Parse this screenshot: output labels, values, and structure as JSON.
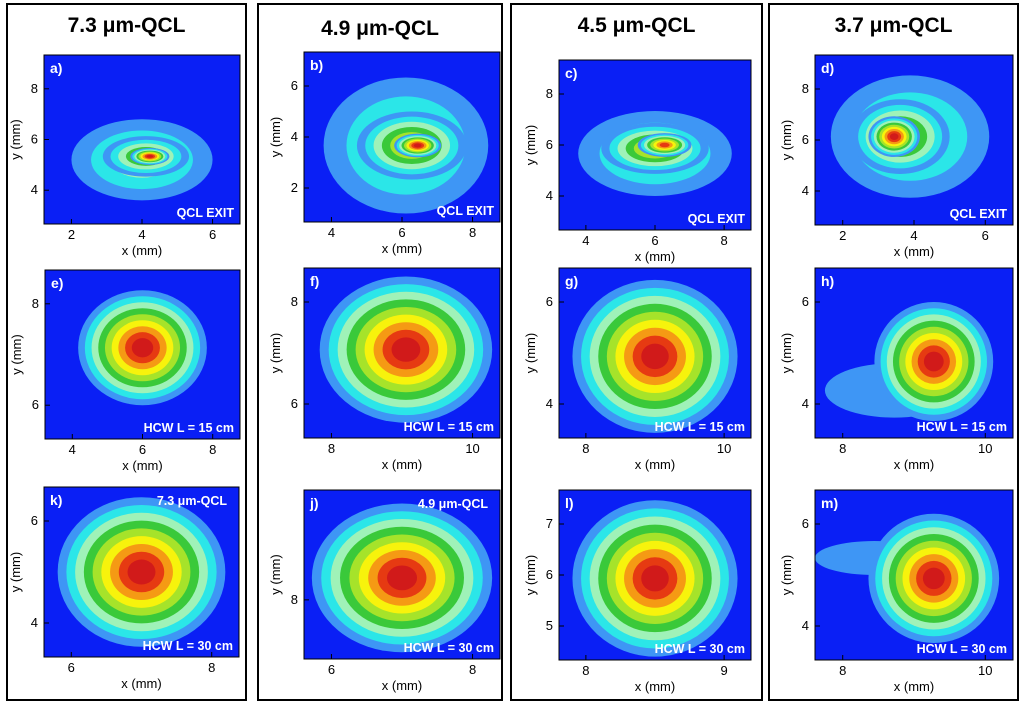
{
  "palette": [
    "#0a1ff5",
    "#3e96f5",
    "#2be6e8",
    "#9ff2b8",
    "#3ac93a",
    "#a6e32a",
    "#f7f30c",
    "#f59a14",
    "#e63a12",
    "#d11a1a"
  ],
  "axis_label_x": "x (mm)",
  "axis_label_y": "y (mm)",
  "columns": [
    {
      "title": "7.3 μm-QCL"
    },
    {
      "title": "4.9 μm-QCL"
    },
    {
      "title": "4.5 μm-QCL"
    },
    {
      "title": "3.7 μm-QCL"
    }
  ],
  "panels": [
    {
      "label": "a)",
      "annotation": "QCL EXIT",
      "xticks": [
        "2",
        "4",
        "6"
      ],
      "yticks": [
        "8",
        "6",
        "4"
      ],
      "blobs": [
        {
          "cx": 0.5,
          "cy": 0.62,
          "rx": 0.36,
          "ry": 0.24,
          "levels": 3
        },
        {
          "cx": 0.52,
          "cy": 0.6,
          "rx": 0.22,
          "ry": 0.12,
          "levels": 5
        },
        {
          "cx": 0.54,
          "cy": 0.6,
          "rx": 0.1,
          "ry": 0.05,
          "levels": 9
        }
      ]
    },
    {
      "label": "b)",
      "annotation": "QCL EXIT",
      "xticks": [
        "4",
        "6",
        "8"
      ],
      "yticks": [
        "6",
        "4",
        "2"
      ],
      "blobs": [
        {
          "cx": 0.52,
          "cy": 0.55,
          "rx": 0.42,
          "ry": 0.4,
          "levels": 3
        },
        {
          "cx": 0.55,
          "cy": 0.55,
          "rx": 0.28,
          "ry": 0.2,
          "levels": 6
        },
        {
          "cx": 0.58,
          "cy": 0.55,
          "rx": 0.12,
          "ry": 0.07,
          "levels": 9
        }
      ]
    },
    {
      "label": "c)",
      "annotation": "QCL EXIT",
      "xticks": [
        "4",
        "6",
        "8"
      ],
      "yticks": [
        "8",
        "6",
        "4"
      ],
      "blobs": [
        {
          "cx": 0.5,
          "cy": 0.55,
          "rx": 0.4,
          "ry": 0.25,
          "levels": 3
        },
        {
          "cx": 0.5,
          "cy": 0.52,
          "rx": 0.28,
          "ry": 0.15,
          "levels": 6
        },
        {
          "cx": 0.55,
          "cy": 0.5,
          "rx": 0.14,
          "ry": 0.07,
          "levels": 8
        }
      ]
    },
    {
      "label": "d)",
      "annotation": "QCL EXIT",
      "xticks": [
        "2",
        "4",
        "6"
      ],
      "yticks": [
        "8",
        "6",
        "4"
      ],
      "blobs": [
        {
          "cx": 0.48,
          "cy": 0.48,
          "rx": 0.4,
          "ry": 0.36,
          "levels": 3
        },
        {
          "cx": 0.43,
          "cy": 0.48,
          "rx": 0.25,
          "ry": 0.22,
          "levels": 6
        },
        {
          "cx": 0.4,
          "cy": 0.48,
          "rx": 0.13,
          "ry": 0.12,
          "levels": 9
        }
      ]
    },
    {
      "label": "e)",
      "annotation": "HCW L = 15 cm",
      "xticks": [
        "4",
        "6",
        "8"
      ],
      "yticks": [
        "8",
        "6"
      ],
      "blobs": [
        {
          "cx": 0.5,
          "cy": 0.46,
          "rx": 0.33,
          "ry": 0.34,
          "levels": 9
        }
      ]
    },
    {
      "label": "f)",
      "annotation": "HCW L = 15 cm",
      "xticks": [
        "8",
        "10"
      ],
      "yticks": [
        "8",
        "6"
      ],
      "blobs": [
        {
          "cx": 0.52,
          "cy": 0.48,
          "rx": 0.44,
          "ry": 0.43,
          "levels": 9
        }
      ]
    },
    {
      "label": "g)",
      "annotation": "HCW L = 15 cm",
      "xticks": [
        "8",
        "10"
      ],
      "yticks": [
        "6",
        "4"
      ],
      "blobs": [
        {
          "cx": 0.5,
          "cy": 0.52,
          "rx": 0.43,
          "ry": 0.45,
          "levels": 9
        }
      ]
    },
    {
      "label": "h)",
      "annotation": "HCW L = 15 cm",
      "xticks": [
        "8",
        "10"
      ],
      "yticks": [
        "6",
        "4"
      ],
      "blobs": [
        {
          "cx": 0.4,
          "cy": 0.72,
          "rx": 0.35,
          "ry": 0.16,
          "levels": 1
        },
        {
          "cx": 0.6,
          "cy": 0.55,
          "rx": 0.3,
          "ry": 0.35,
          "levels": 9
        }
      ]
    },
    {
      "label": "k)",
      "annotation": "HCW L = 30 cm",
      "inset": "7.3 μm-QCL",
      "xticks": [
        "6",
        "8"
      ],
      "yticks": [
        "6",
        "4"
      ],
      "blobs": [
        {
          "cx": 0.5,
          "cy": 0.5,
          "rx": 0.43,
          "ry": 0.44,
          "levels": 9
        }
      ]
    },
    {
      "label": "j)",
      "annotation": "HCW L = 30 cm",
      "inset": "4.9 μm-QCL",
      "xticks": [
        "6",
        "8"
      ],
      "yticks": [
        "8"
      ],
      "blobs": [
        {
          "cx": 0.5,
          "cy": 0.52,
          "rx": 0.46,
          "ry": 0.44,
          "levels": 9
        }
      ]
    },
    {
      "label": "l)",
      "annotation": "HCW L = 30 cm",
      "xticks": [
        "8",
        "9"
      ],
      "yticks": [
        "7",
        "6",
        "5"
      ],
      "blobs": [
        {
          "cx": 0.5,
          "cy": 0.52,
          "rx": 0.43,
          "ry": 0.46,
          "levels": 9
        }
      ]
    },
    {
      "label": "m)",
      "annotation": "HCW L = 30 cm",
      "xticks": [
        "8",
        "10"
      ],
      "yticks": [
        "6",
        "4"
      ],
      "blobs": [
        {
          "cx": 0.3,
          "cy": 0.4,
          "rx": 0.3,
          "ry": 0.1,
          "levels": 1
        },
        {
          "cx": 0.6,
          "cy": 0.52,
          "rx": 0.33,
          "ry": 0.38,
          "levels": 9
        }
      ]
    }
  ]
}
